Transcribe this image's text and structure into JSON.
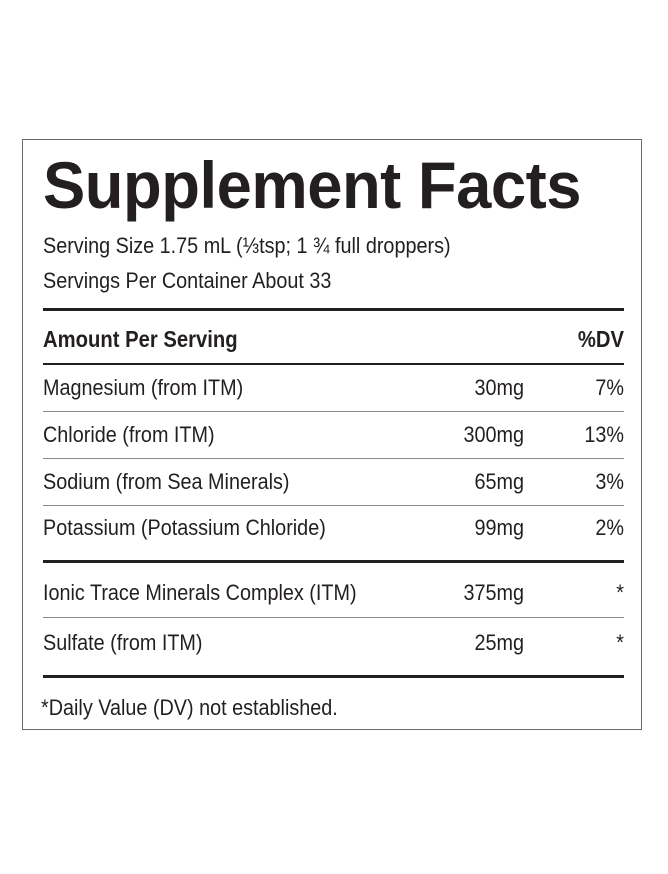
{
  "title": "Supplement Facts",
  "serving_size": "Serving Size 1.75 mL (⅓tsp; 1 ¾ full droppers)",
  "servings_per_container": "Servings Per Container About 33",
  "header": {
    "amount_label": "Amount Per Serving",
    "dv_label": "%DV"
  },
  "nutrients": [
    {
      "name": "Magnesium (from ITM)",
      "amount": "30mg",
      "dv": "7%"
    },
    {
      "name": "Chloride (from ITM)",
      "amount": "300mg",
      "dv": "13%"
    },
    {
      "name": "Sodium (from Sea Minerals)",
      "amount": "65mg",
      "dv": "3%"
    },
    {
      "name": "Potassium (Potassium Chloride)",
      "amount": "99mg",
      "dv": "2%"
    }
  ],
  "other_ingredients": [
    {
      "name": "Ionic Trace Minerals Complex (ITM)",
      "amount": "375mg",
      "dv": "*"
    },
    {
      "name": "Sulfate (from ITM)",
      "amount": "25mg",
      "dv": "*"
    }
  ],
  "footnote": "*Daily Value (DV) not established."
}
